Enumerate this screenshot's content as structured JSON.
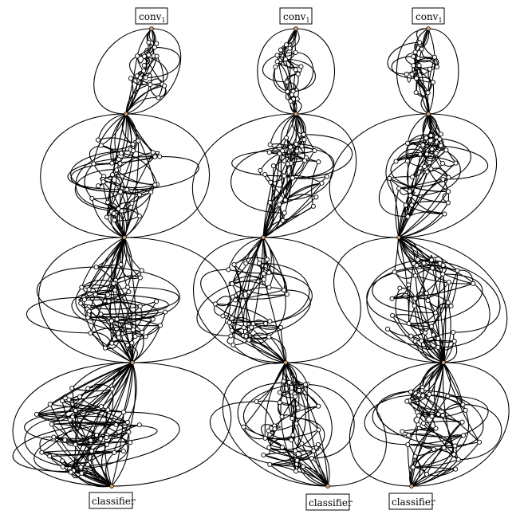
{
  "figure": {
    "columns": [
      {
        "top_label": "conv",
        "top_sub": "1",
        "bottom_label": "classifier"
      },
      {
        "top_label": "conv",
        "top_sub": "1",
        "bottom_label": "classifier"
      },
      {
        "top_label": "conv",
        "top_sub": "1",
        "bottom_label": "classifier"
      }
    ],
    "colors": {
      "edge": "#000000",
      "node_fill": "#ffffff",
      "hub_fill": "#d4a373"
    }
  }
}
